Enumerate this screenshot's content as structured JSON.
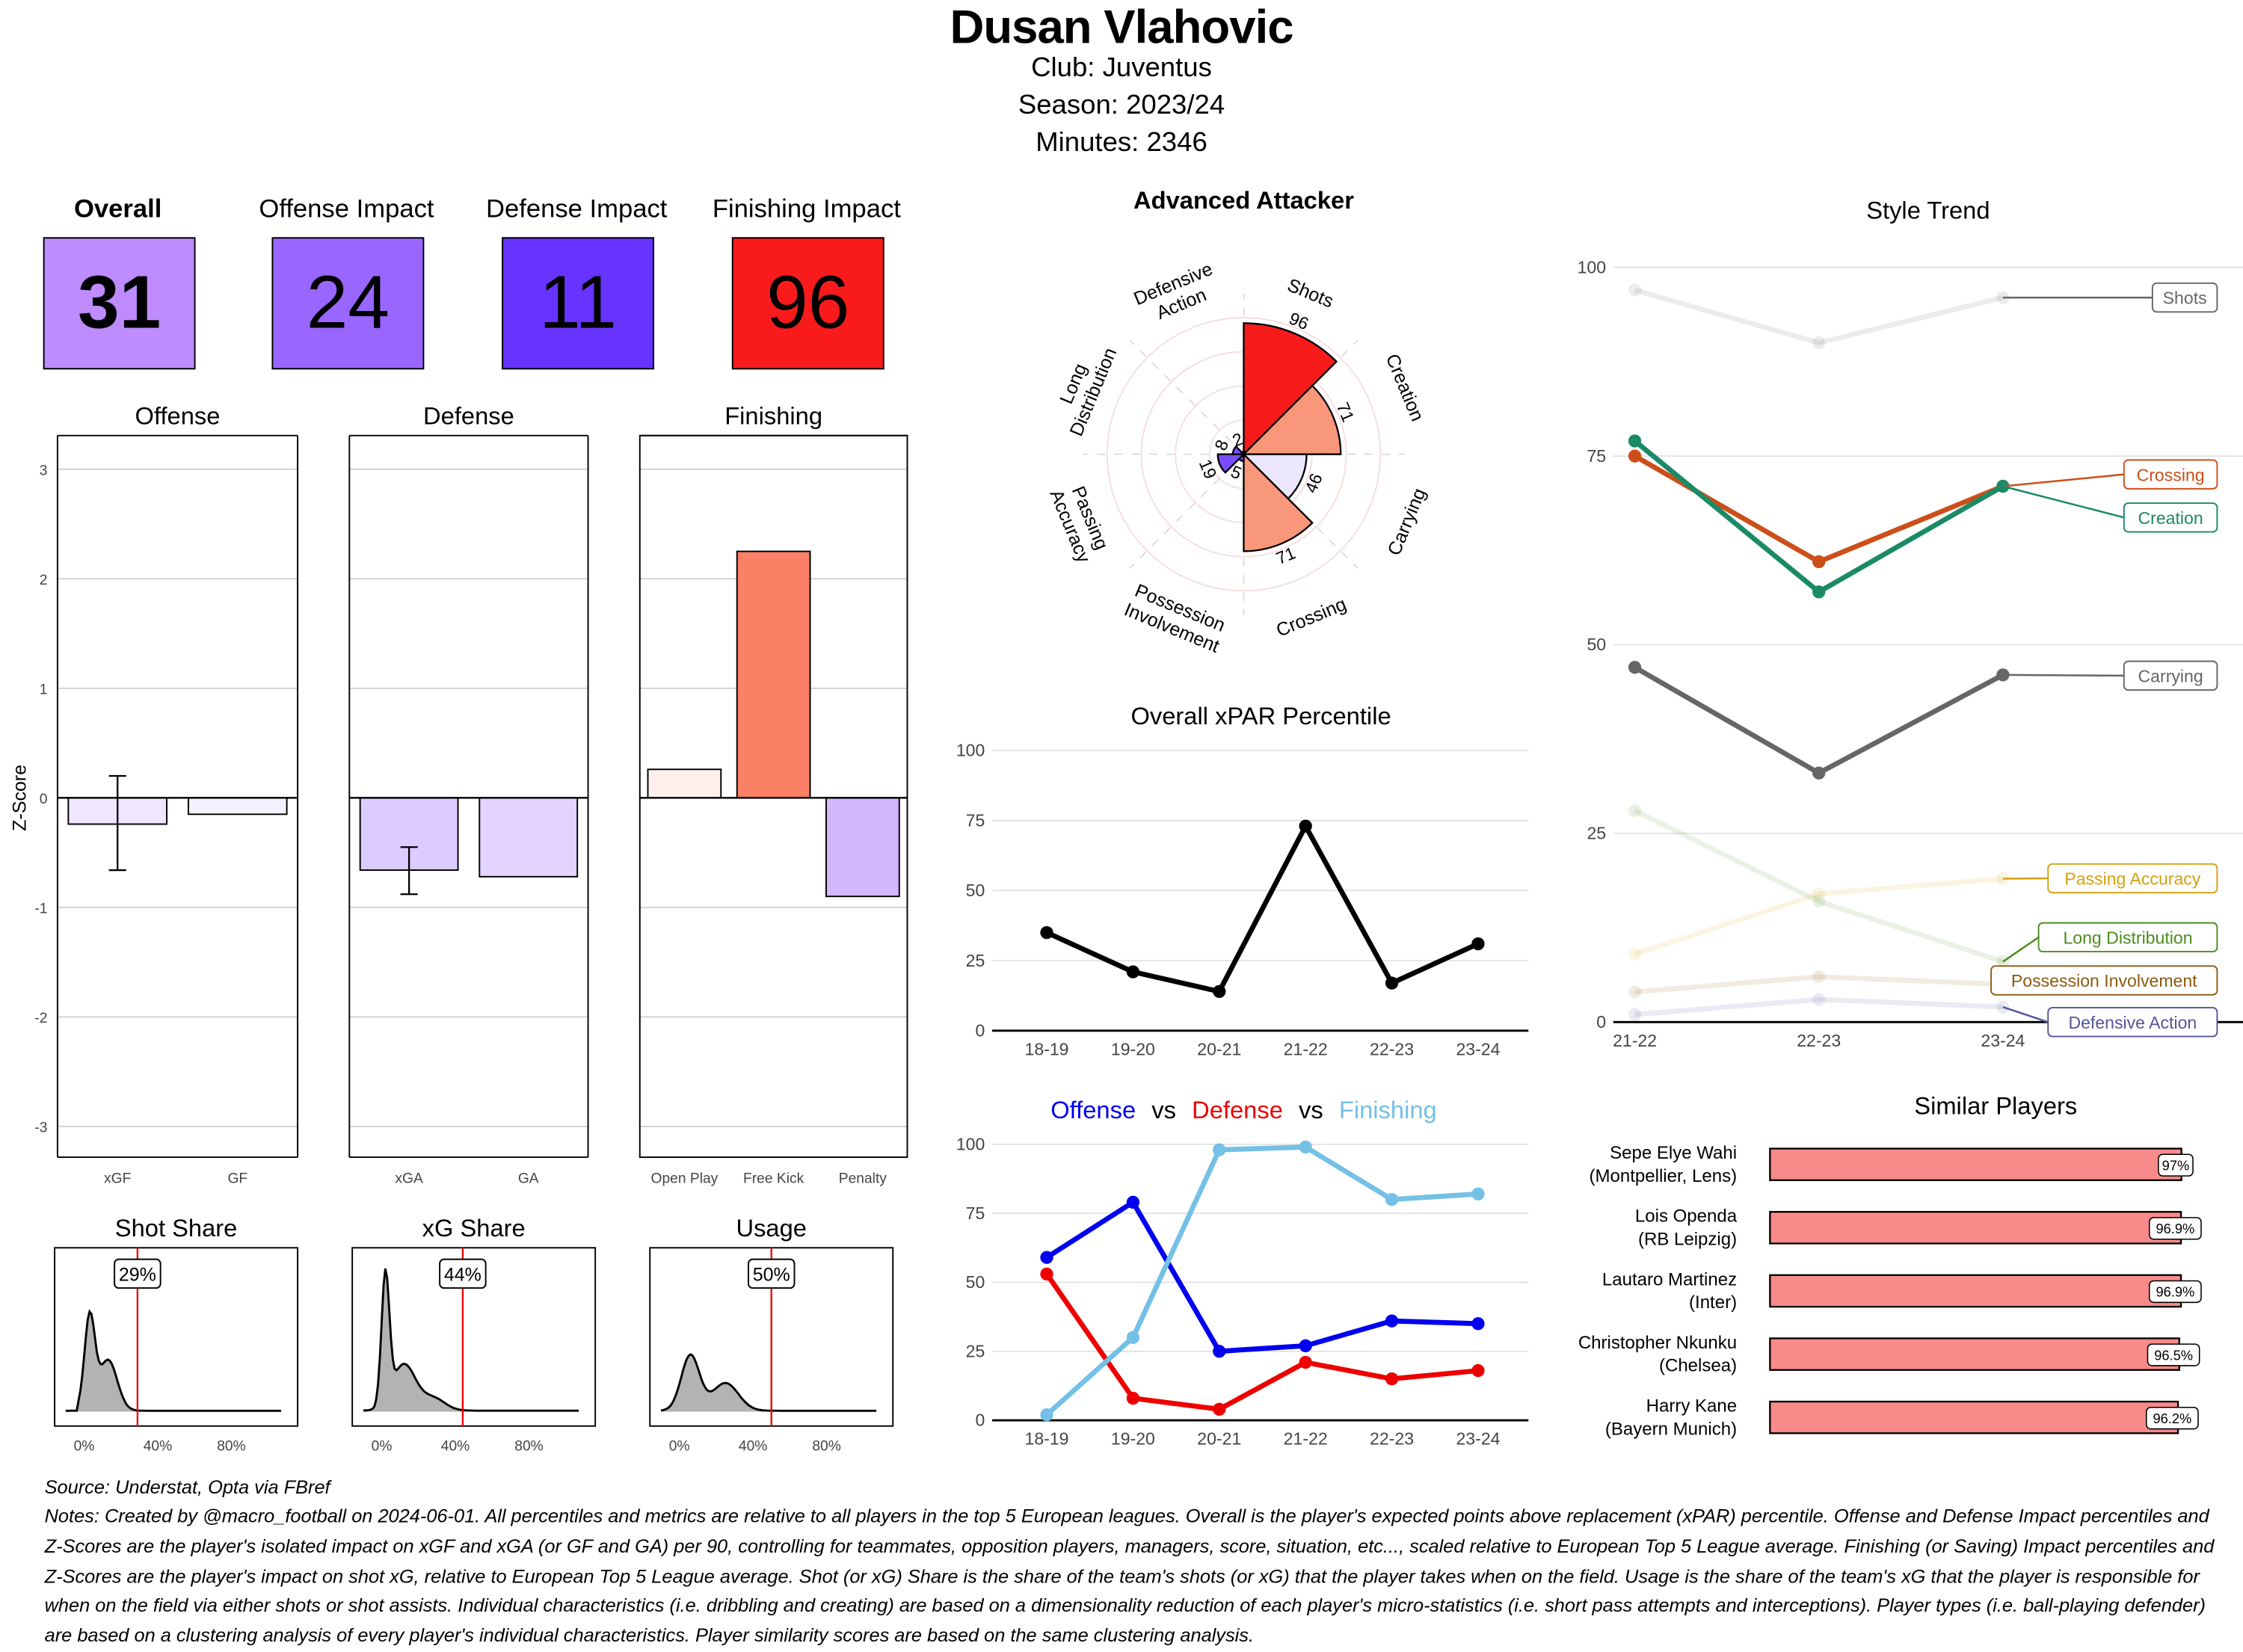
{
  "header": {
    "player_name": "Dusan Vlahovic",
    "club": "Club:  Juventus",
    "season": "Season:  2023/24",
    "minutes": "Minutes:  2346"
  },
  "impacts": [
    {
      "label": "Overall",
      "value": "31",
      "color": "#bf8cff",
      "bold": true
    },
    {
      "label": "Offense Impact",
      "value": "24",
      "color": "#9966ff",
      "bold": false
    },
    {
      "label": "Defense Impact",
      "value": "11",
      "color": "#6633ff",
      "bold": false
    },
    {
      "label": "Finishing Impact",
      "value": "96",
      "color": "#f91b1b",
      "bold": false
    }
  ],
  "zscore_charts": {
    "ylabel": "Z-Score",
    "ylim": [
      -3.3,
      3.3
    ],
    "yticks": [
      -3,
      -2,
      -1,
      0,
      1,
      2,
      3
    ],
    "panels": [
      {
        "title": "Offense",
        "categories": [
          "xGF",
          "GF"
        ],
        "values": [
          -0.24,
          -0.15
        ],
        "colors": [
          "#efe6ff",
          "#f5f0ff"
        ],
        "error": [
          [
            -0.66,
            0.2
          ],
          null
        ]
      },
      {
        "title": "Defense",
        "categories": [
          "xGA",
          "GA"
        ],
        "values": [
          -0.66,
          -0.72
        ],
        "colors": [
          "#dccbff",
          "#e3d3ff"
        ],
        "error": [
          [
            -0.88,
            -0.45
          ],
          null
        ]
      },
      {
        "title": "Finishing",
        "categories": [
          "Open Play",
          "Free Kick",
          "Penalty"
        ],
        "values": [
          0.26,
          2.25,
          -0.9
        ],
        "colors": [
          "#fff0ee",
          "#fa8066",
          "#d4b8ff"
        ],
        "error": [
          null,
          null,
          null
        ]
      }
    ]
  },
  "share_charts": [
    {
      "title": "Shot Share",
      "value": 29,
      "label": "29%"
    },
    {
      "title": "xG Share",
      "value": 44,
      "label": "44%"
    },
    {
      "title": "Usage",
      "value": 50,
      "label": "50%"
    }
  ],
  "share_ticks": [
    "0%",
    "40%",
    "80%"
  ],
  "chart_data": [
    {
      "type": "bar",
      "title": "Advanced Attacker",
      "polar": true,
      "categories": [
        "Shots",
        "Creation",
        "Carrying",
        "Crossing",
        "Possession Involvement",
        "Passing Accuracy",
        "Long Distribution",
        "Defensive Action"
      ],
      "values": [
        96,
        71,
        46,
        71,
        5,
        19,
        8,
        2
      ],
      "colors": [
        "#f71b1b",
        "#f9977a",
        "#ece6ff",
        "#f9977a",
        "#7a4cff",
        "#7a4cff",
        "#7a4cff",
        "#7a4cff"
      ],
      "ylim": [
        0,
        100
      ]
    },
    {
      "type": "line",
      "title": "Overall xPAR Percentile",
      "categories": [
        "18-19",
        "19-20",
        "20-21",
        "21-22",
        "22-23",
        "23-24"
      ],
      "series": [
        {
          "values": [
            35,
            21,
            14,
            73,
            17,
            31
          ],
          "color": "#000000"
        }
      ],
      "yticks": [
        0,
        25,
        50,
        75,
        100
      ],
      "ylim": [
        0,
        100
      ]
    },
    {
      "type": "line",
      "title_parts": [
        {
          "text": "Offense",
          "color": "#0000ee"
        },
        {
          "text": "vs",
          "color": "#000000"
        },
        {
          "text": "Defense",
          "color": "#ee0000"
        },
        {
          "text": "vs",
          "color": "#000000"
        },
        {
          "text": "Finishing",
          "color": "#74c0e6"
        }
      ],
      "categories": [
        "18-19",
        "19-20",
        "20-21",
        "21-22",
        "22-23",
        "23-24"
      ],
      "series": [
        {
          "name": "Offense",
          "values": [
            59,
            79,
            25,
            27,
            36,
            35
          ],
          "color": "#0000ee"
        },
        {
          "name": "Defense",
          "values": [
            53,
            8,
            4,
            21,
            15,
            18
          ],
          "color": "#ee0000"
        },
        {
          "name": "Finishing",
          "values": [
            2,
            30,
            98,
            99,
            80,
            82
          ],
          "color": "#74c0e6"
        }
      ],
      "yticks": [
        0,
        25,
        50,
        75,
        100
      ],
      "ylim": [
        0,
        100
      ]
    },
    {
      "type": "line",
      "title": "Style Trend",
      "categories": [
        "21-22",
        "22-23",
        "23-24"
      ],
      "yticks": [
        0,
        25,
        50,
        75,
        100
      ],
      "ylim": [
        0,
        100
      ],
      "series": [
        {
          "name": "Shots",
          "values": [
            97,
            90,
            96
          ],
          "color": "#666666",
          "highlight": false
        },
        {
          "name": "Crossing",
          "values": [
            75,
            61,
            71
          ],
          "color": "#cc4f1a",
          "highlight": true
        },
        {
          "name": "Creation",
          "values": [
            77,
            57,
            71
          ],
          "color": "#1b8a66",
          "highlight": true
        },
        {
          "name": "Carrying",
          "values": [
            47,
            33,
            46
          ],
          "color": "#666666",
          "highlight": true
        },
        {
          "name": "Passing Accuracy",
          "values": [
            9,
            17,
            19
          ],
          "color": "#d4a20f",
          "highlight": false
        },
        {
          "name": "Long Distribution",
          "values": [
            28,
            16,
            8
          ],
          "color": "#4c8c1e",
          "highlight": false
        },
        {
          "name": "Possession Involvement",
          "values": [
            4,
            6,
            5
          ],
          "color": "#8b5a10",
          "highlight": false
        },
        {
          "name": "Defensive Action",
          "values": [
            1,
            3,
            2
          ],
          "color": "#55559a",
          "highlight": false
        }
      ]
    },
    {
      "type": "bar",
      "title": "Similar Players",
      "orientation": "horizontal",
      "categories": [
        "Sepe Elye Wahi\n(Montpellier, Lens)",
        "Lois Openda\n(RB Leipzig)",
        "Lautaro Martinez\n(Inter)",
        "Christopher Nkunku\n(Chelsea)",
        "Harry Kane\n(Bayern Munich)"
      ],
      "values": [
        97,
        96.9,
        96.9,
        96.5,
        96.2
      ],
      "labels": [
        "97%",
        "96.9%",
        "96.9%",
        "96.5%",
        "96.2%"
      ],
      "color": "#f98a8a"
    }
  ],
  "footer": {
    "source": "Source: Understat, Opta via FBref",
    "notes": "Notes: Created by @macro_football on 2024-06-01. All percentiles and metrics are relative to all players in the top 5 European leagues. Overall is the player's expected points above replacement (xPAR) percentile. Offense and Defense Impact percentiles and Z-Scores are the player's isolated impact on xGF and xGA (or GF and GA) per 90, controlling for teammates, opposition players, managers, score, situation, etc..., scaled relative to European Top 5 League average. Finishing (or Saving) Impact percentiles and Z-Scores are the player's impact on shot xG, relative to European Top 5 League average. Shot (or xG) Share is the share of the team's shots (or xG) that the player takes when on the field. Usage is the share of the team's xG that the player is responsible for when on the field via either shots or shot assists. Individual characteristics (i.e. dribbling and creating) are based on a dimensionality reduction of each player's micro-statistics (i.e. short pass attempts and interceptions). Player types (i.e. ball-playing defender) are based on a clustering analysis of every player's individual characteristics. Player similarity scores are based on the same clustering analysis."
  }
}
